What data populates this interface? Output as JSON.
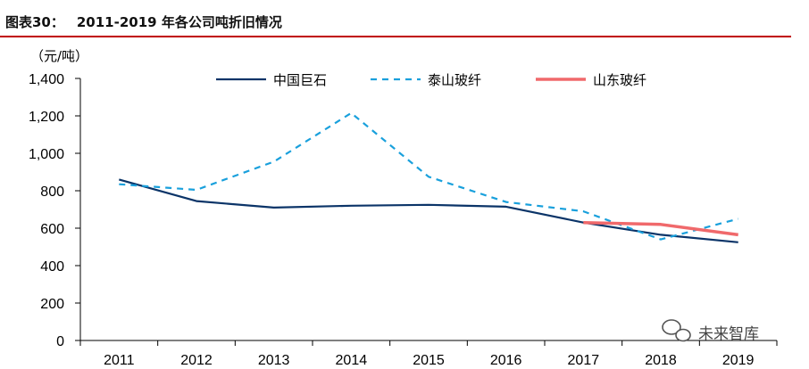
{
  "header": {
    "label": "图表30：",
    "title": "2011-2019 年各公司吨折旧情况"
  },
  "watermark": {
    "text": "未来智库"
  },
  "colors": {
    "rule": "#c00000",
    "axis": "#000000"
  },
  "chart_data": {
    "type": "line",
    "title": "2011-2019 年各公司吨折旧情况",
    "ylabel": "（元/吨）",
    "xlabel": "",
    "ylim": [
      0,
      1400
    ],
    "yticks": [
      0,
      200,
      400,
      600,
      800,
      1000,
      1200,
      1400
    ],
    "ytick_labels": [
      "0",
      "200",
      "400",
      "600",
      "800",
      "1,000",
      "1,200",
      "1,400"
    ],
    "categories": [
      "2011",
      "2012",
      "2013",
      "2014",
      "2015",
      "2016",
      "2017",
      "2018",
      "2019"
    ],
    "grid": false,
    "legend_position": "top",
    "series": [
      {
        "name": "中国巨石",
        "color": "#0b3468",
        "style": "solid",
        "values": [
          860,
          745,
          710,
          720,
          725,
          715,
          630,
          565,
          525
        ]
      },
      {
        "name": "泰山玻纤",
        "color": "#19a0dc",
        "style": "dashed",
        "values": [
          835,
          805,
          955,
          1215,
          875,
          740,
          690,
          540,
          650
        ]
      },
      {
        "name": "山东玻纤",
        "color": "#f0696b",
        "style": "solid",
        "values": [
          null,
          null,
          null,
          null,
          null,
          null,
          630,
          620,
          565
        ]
      }
    ]
  }
}
